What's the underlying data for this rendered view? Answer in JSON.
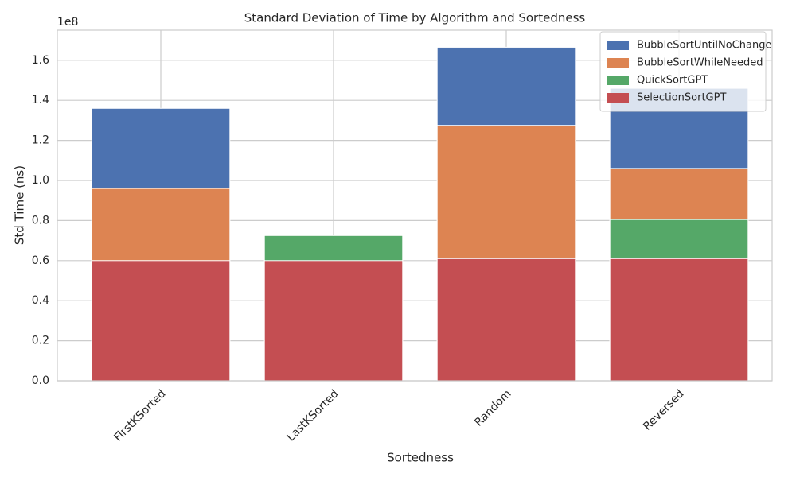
{
  "chart_data": {
    "type": "bar",
    "mode": "overlap",
    "title": "Standard Deviation of Time by Algorithm and Sortedness",
    "x_label": "Sortedness",
    "y_label": "Std Time (ns)",
    "y_offset_label": "1e8",
    "categories": [
      "FirstKSorted",
      "LastKSorted",
      "Random",
      "Reversed"
    ],
    "series": [
      {
        "name": "BubbleSortUntilNoChange",
        "color": "#4c72b0",
        "values": [
          1.36,
          null,
          1.665,
          1.46
        ]
      },
      {
        "name": "BubbleSortWhileNeeded",
        "color": "#dd8452",
        "values": [
          0.96,
          null,
          1.275,
          1.06
        ]
      },
      {
        "name": "QuickSortGPT",
        "color": "#55a868",
        "values": [
          null,
          0.725,
          null,
          0.805
        ]
      },
      {
        "name": "SelectionSortGPT",
        "color": "#c44e52",
        "values": [
          0.6,
          0.6,
          0.61,
          0.61
        ]
      }
    ],
    "ylim": [
      0,
      1.75
    ],
    "yticks": [
      {
        "value": 0,
        "label": "0.0"
      },
      0.2,
      0.4,
      0.6,
      0.8,
      {
        "value": 1,
        "label": "1.0"
      },
      1.2,
      1.4,
      1.6
    ],
    "grid": true,
    "legend": "upper-right"
  }
}
